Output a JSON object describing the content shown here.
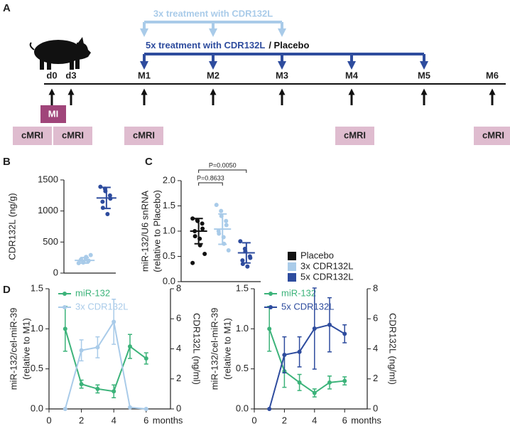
{
  "panel_a": {
    "label": "A",
    "treatment_3x": "3x treatment with CDR132L",
    "treatment_5x": "5x treatment with CDR132L",
    "placebo": "/ Placebo",
    "timepoints": [
      "d0",
      "d3",
      "M1",
      "M2",
      "M3",
      "M4",
      "M5",
      "M6"
    ],
    "injury": "MI",
    "imaging": [
      "cMRI",
      "cMRI",
      "cMRI",
      "cMRI",
      "cMRI"
    ]
  },
  "chart_data": [
    {
      "type": "dotplot",
      "label": "B",
      "ylabel": [
        "CDR132L (ng/g)"
      ],
      "ylim": [
        0,
        1500
      ],
      "yticks": [
        0,
        500,
        1000,
        1500
      ],
      "series": [
        {
          "color": "#a9cbe9",
          "values": [
            160,
            170,
            180,
            190,
            200,
            210,
            220,
            235,
            260,
            290
          ],
          "mean": 205,
          "sd": 45
        },
        {
          "color": "#2e4c9e",
          "values": [
            1390,
            1360,
            1320,
            1250,
            1200,
            1150,
            1050,
            950
          ],
          "mean": 1210,
          "sd": 170
        }
      ]
    },
    {
      "type": "dotplot",
      "label": "C",
      "ylabel": [
        "miR-132/U6 snRNA",
        "(relative to Placebo)"
      ],
      "ylim": [
        0,
        2
      ],
      "yticks": [
        {
          "value": 0,
          "label": "0.0"
        },
        {
          "value": 0.5,
          "label": "0.5"
        },
        {
          "value": 1,
          "label": "1.0"
        },
        {
          "value": 1.5,
          "label": "1.5"
        },
        {
          "value": 2,
          "label": "2.0"
        }
      ],
      "annotations": [
        "P=0.8633",
        "P=0.0050"
      ],
      "series": [
        {
          "name": "Placebo",
          "color": "#111111",
          "values": [
            1.25,
            1.22,
            1.2,
            1.15,
            1.05,
            1.0,
            0.9,
            0.85,
            0.72,
            0.55,
            0.37
          ],
          "mean": 1.0,
          "sd": 0.25
        },
        {
          "name": "3x CDR132L",
          "color": "#a9cbe9",
          "values": [
            1.52,
            1.4,
            1.3,
            1.2,
            1.12,
            1.0,
            0.95,
            0.88,
            0.75,
            0.62
          ],
          "mean": 1.04,
          "sd": 0.3
        },
        {
          "name": "5x CDR132L",
          "color": "#2e4c9e",
          "values": [
            0.8,
            0.65,
            0.6,
            0.5,
            0.47,
            0.42,
            0.35,
            0.3
          ],
          "mean": 0.57,
          "sd": 0.2
        }
      ]
    },
    {
      "type": "line",
      "label": "D",
      "ylabel": [
        "miR-132/cel-miR-39",
        "(relative to M1)"
      ],
      "y2label": "CDR132L (ng/ml)",
      "xlabel": "months",
      "x": [
        1,
        2,
        3,
        4,
        5,
        6
      ],
      "xlim": [
        0,
        7.5
      ],
      "xticks": [
        0,
        2,
        4,
        6
      ],
      "ylim": [
        0,
        1.5
      ],
      "yticks": [
        {
          "value": 0,
          "label": "0.0"
        },
        {
          "value": 0.5,
          "label": "0.5"
        },
        {
          "value": 1,
          "label": "1.0"
        },
        {
          "value": 1.5,
          "label": "1.5"
        }
      ],
      "y2lim": [
        0,
        8
      ],
      "y2ticks": [
        0,
        2,
        4,
        6,
        8
      ],
      "series": [
        {
          "name": "miR-132",
          "color": "#3cb37a",
          "values": [
            1.0,
            0.31,
            0.25,
            0.22,
            0.78,
            0.63
          ],
          "errors": [
            0.28,
            0.05,
            0.05,
            0.08,
            0.15,
            0.07
          ]
        },
        {
          "name": "3x CDR132L",
          "color": "#a9cbe9",
          "axis": "y2",
          "values": [
            0,
            3.9,
            4.1,
            5.8,
            0.1,
            0
          ],
          "errors": [
            0,
            0.7,
            0.7,
            1.5,
            0,
            0
          ]
        }
      ]
    },
    {
      "type": "line",
      "ylabel": [
        "miR-132/cel-miR-39",
        "(relative to M1)"
      ],
      "y2label": "CDR132L (ng/ml)",
      "xlabel": "months",
      "x": [
        1,
        2,
        3,
        4,
        5,
        6
      ],
      "xlim": [
        0,
        7.5
      ],
      "xticks": [
        0,
        2,
        4,
        6
      ],
      "ylim": [
        0,
        1.5
      ],
      "yticks": [
        {
          "value": 0,
          "label": "0.0"
        },
        {
          "value": 0.5,
          "label": "0.5"
        },
        {
          "value": 1,
          "label": "1.0"
        },
        {
          "value": 1.5,
          "label": "1.5"
        }
      ],
      "y2lim": [
        0,
        8
      ],
      "y2ticks": [
        0,
        2,
        4,
        6,
        8
      ],
      "series": [
        {
          "name": "miR-132",
          "color": "#3cb37a",
          "values": [
            1.0,
            0.47,
            0.33,
            0.2,
            0.33,
            0.35
          ],
          "errors": [
            0.28,
            0.2,
            0.1,
            0.05,
            0.08,
            0.05
          ]
        },
        {
          "name": "5x CDR132L",
          "color": "#2e4c9e",
          "axis": "y2",
          "values": [
            0,
            3.6,
            3.8,
            5.35,
            5.6,
            5.0
          ],
          "errors": [
            0,
            1.2,
            1.0,
            2.7,
            1.8,
            0.6
          ]
        }
      ]
    }
  ]
}
